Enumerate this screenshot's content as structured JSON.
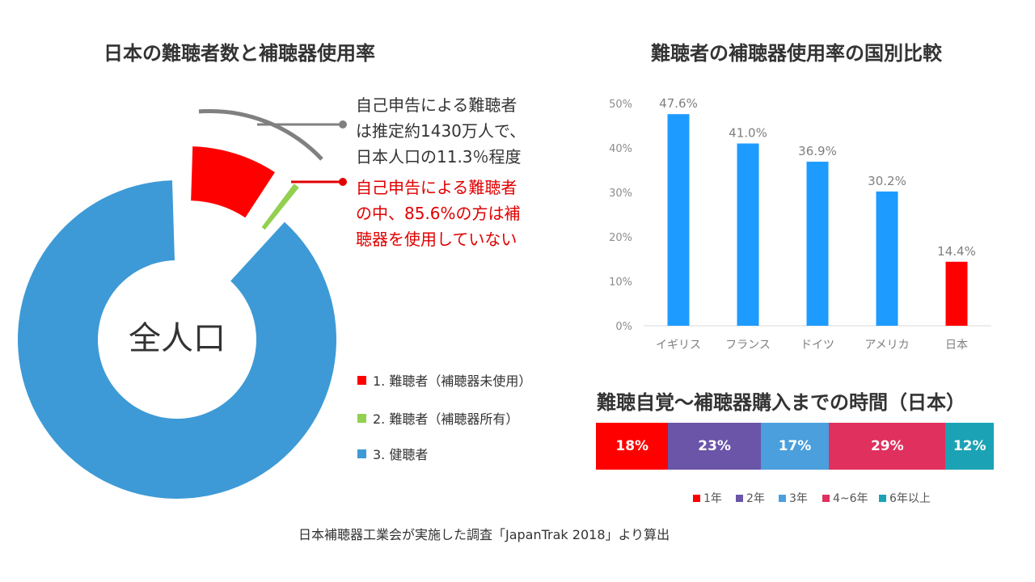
{
  "left_chart": {
    "title": "日本の難聴者数と補聴器使用率",
    "center_label": "全人口",
    "annotation_gray": [
      "自己申告による難聴者",
      "は推定約1430万人で、",
      "日本人口の11.3％程度"
    ],
    "annotation_red": [
      "自己申告による難聴者",
      "の中、85.6%の方は補",
      "聴器を使用していない"
    ],
    "legend": [
      {
        "label": "1. 難聴者（補聴器未使用）",
        "color": "#ff0000"
      },
      {
        "label": "2. 難聴者（補聴器所有）",
        "color": "#92d050"
      },
      {
        "label": "3. 健聴者",
        "color": "#3d9ad6"
      }
    ]
  },
  "right_chart": {
    "title": "難聴者の補聴器使用率の国別比較"
  },
  "bottom_chart": {
    "title": "難聴自覚〜補聴器購入までの時間（日本）"
  },
  "footer": "日本補聴器工業会が実施した調査「JapanTrak 2018」より算出",
  "chart_data": [
    {
      "type": "pie",
      "title": "日本の難聴者数と補聴器使用率",
      "categories": [
        "1. 難聴者（補聴器未使用）",
        "2. 難聴者（補聴器所有）",
        "3. 健聴者"
      ],
      "values": [
        9.7,
        1.6,
        88.7
      ],
      "colors": [
        "#ff0000",
        "#92d050",
        "#3d9ad6"
      ],
      "annotations": [
        "自己申告による難聴者は推定約1430万人で、日本人口の11.3％程度",
        "自己申告による難聴者の中、85.6%の方は補聴器を使用していない"
      ],
      "legend_position": "right"
    },
    {
      "type": "bar",
      "title": "難聴者の補聴器使用率の国別比較",
      "categories": [
        "イギリス",
        "フランス",
        "ドイツ",
        "アメリカ",
        "日本"
      ],
      "values": [
        47.6,
        41.0,
        36.9,
        30.2,
        14.4
      ],
      "labels": [
        "47.6%",
        "41.0%",
        "36.9%",
        "30.2%",
        "14.4%"
      ],
      "colors": [
        "#1e9bff",
        "#1e9bff",
        "#1e9bff",
        "#1e9bff",
        "#ff0000"
      ],
      "yticks": [
        "0%",
        "10%",
        "20%",
        "30%",
        "40%",
        "50%"
      ],
      "ylim": [
        0,
        50
      ],
      "grid": false
    },
    {
      "type": "bar",
      "orientation": "horizontal-stacked",
      "title": "難聴自覚〜補聴器購入までの時間（日本）",
      "series": [
        {
          "name": "1年",
          "value": 18,
          "label": "18%",
          "color": "#ff0000"
        },
        {
          "name": "2年",
          "value": 23,
          "label": "23%",
          "color": "#6a55a8"
        },
        {
          "name": "3年",
          "value": 17,
          "label": "17%",
          "color": "#4a9fdc"
        },
        {
          "name": "4~6年",
          "value": 29,
          "label": "29%",
          "color": "#e0305e"
        },
        {
          "name": "6年以上",
          "value": 12,
          "label": "12%",
          "color": "#1ba3b5"
        }
      ],
      "legend_position": "bottom"
    }
  ]
}
